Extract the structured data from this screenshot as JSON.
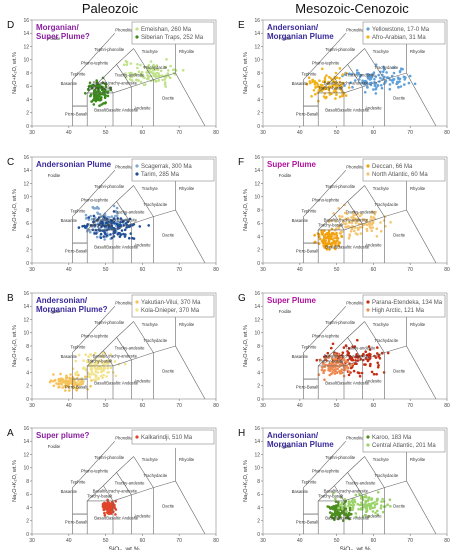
{
  "columns": [
    "Paleozoic",
    "Mesozoic-Cenozoic"
  ],
  "axis": {
    "xlabel": "SiO₂, wt.%",
    "ylabel": "Na₂O+K₂O, wt.%",
    "xlim": [
      30,
      80
    ],
    "ylim": [
      0,
      16
    ],
    "xticks": [
      30,
      40,
      50,
      60,
      70,
      80
    ],
    "yticks": [
      0,
      2,
      4,
      6,
      8,
      10,
      12,
      14,
      16
    ]
  },
  "tas_fields": {
    "foidite": "Foidite",
    "phonolite": "Phonolite",
    "tephriphonolite": "Tephri-phonolite",
    "phonotephrite": "Phono-tephrite",
    "tephrite": "Tephrite",
    "basanite": "Basanite",
    "trachyte": "Trachyte",
    "trachydacite": "Trachydacite",
    "trachyandesite": "Trachy-andesite",
    "basaltic_trachyandesite": "Basaltic trachy-andesite",
    "trachybasalt": "Trachy-basalt",
    "rhyolite": "Rhyolite",
    "dacite": "Dacite",
    "andesite": "Andesite",
    "basaltic_andesite": "Basaltic Andesite",
    "basalt": "Basalt",
    "picrobasalt": "Picro-Basalt"
  },
  "chart_data": [
    {
      "type": "scatter",
      "panel": "D",
      "title": "Morganian/ Super Plume?",
      "xlabel": "SiO₂, wt.%",
      "ylabel": "Na₂O+K₂O, wt.%",
      "xlim": [
        30,
        80
      ],
      "ylim": [
        0,
        16
      ],
      "legend": "top-right",
      "series": [
        {
          "name": "Emeishan, 260 Ma",
          "color": "#bfe28a",
          "cloud": {
            "x_center": 62,
            "y_center": 8,
            "x_spread": 10,
            "y_spread": 2.5
          }
        },
        {
          "name": "Siberian Traps, 252 Ma",
          "color": "#3a8a1c",
          "cloud": {
            "x_center": 48,
            "y_center": 5,
            "x_spread": 4,
            "y_spread": 2.5
          }
        }
      ]
    },
    {
      "type": "scatter",
      "panel": "C",
      "title": "Andersonian Plume",
      "xlabel": "SiO₂, wt.%",
      "ylabel": "Na₂O+K₂O, wt.%",
      "xlim": [
        30,
        80
      ],
      "ylim": [
        0,
        16
      ],
      "legend": "top-right",
      "series": [
        {
          "name": "Scagerrak, 300 Ma",
          "color": "#7fa6d0",
          "cloud": {
            "x_center": 50,
            "y_center": 6,
            "x_spread": 8,
            "y_spread": 3
          }
        },
        {
          "name": "Tarim, 285 Ma",
          "color": "#1f4e96",
          "cloud": {
            "x_center": 52,
            "y_center": 5.5,
            "x_spread": 12,
            "y_spread": 2.5
          }
        }
      ]
    },
    {
      "type": "scatter",
      "panel": "B",
      "title": "Andersonian/ Morganian Plume?",
      "xlabel": "SiO₂, wt.%",
      "ylabel": "Na₂O+K₂O, wt.%",
      "xlim": [
        30,
        80
      ],
      "ylim": [
        0,
        16
      ],
      "legend": "top-right",
      "series": [
        {
          "name": "Yakutian-Vilui, 370 Ma",
          "color": "#f6c25a",
          "cloud": {
            "x_center": 40,
            "y_center": 2.5,
            "x_spread": 7,
            "y_spread": 1.5
          }
        },
        {
          "name": "Kola-Dnieper, 370 Ma",
          "color": "#f2e38a",
          "cloud": {
            "x_center": 48,
            "y_center": 5,
            "x_spread": 8,
            "y_spread": 3
          }
        }
      ]
    },
    {
      "type": "scatter",
      "panel": "A",
      "title": "Super plume?",
      "xlabel": "SiO₂, wt.%",
      "ylabel": "Na₂O+K₂O, wt.%",
      "xlim": [
        30,
        80
      ],
      "ylim": [
        0,
        16
      ],
      "legend": "top-right",
      "series": [
        {
          "name": "Kalkarindji, 510 Ma",
          "color": "#e0442a",
          "cloud": {
            "x_center": 51,
            "y_center": 4,
            "x_spread": 2.5,
            "y_spread": 1.5
          }
        }
      ]
    },
    {
      "type": "scatter",
      "panel": "E",
      "title": "Andersonian/ Morganian Plume",
      "xlabel": "SiO₂, wt.%",
      "ylabel": "Na₂O+K₂O, wt.%",
      "xlim": [
        30,
        80
      ],
      "ylim": [
        0,
        16
      ],
      "legend": "top-right",
      "series": [
        {
          "name": "Yellowstone, 17-0 Ma",
          "color": "#5fa0db",
          "cloud": {
            "x_center": 62,
            "y_center": 7,
            "x_spread": 14,
            "y_spread": 2.5
          }
        },
        {
          "name": "Afro-Arabian, 31 Ma",
          "color": "#f2b21a",
          "cloud": {
            "x_center": 48,
            "y_center": 6,
            "x_spread": 7,
            "y_spread": 3
          }
        }
      ]
    },
    {
      "type": "scatter",
      "panel": "F",
      "title": "Super Plume",
      "xlabel": "SiO₂, wt.%",
      "ylabel": "Na₂O+K₂O, wt.%",
      "xlim": [
        30,
        80
      ],
      "ylim": [
        0,
        16
      ],
      "legend": "top-right",
      "series": [
        {
          "name": "Deccan, 66 Ma",
          "color": "#f2a20f",
          "cloud": {
            "x_center": 48,
            "y_center": 3.5,
            "x_spread": 5,
            "y_spread": 2
          }
        },
        {
          "name": "North Atlantic, 60 Ma",
          "color": "#f4c470",
          "cloud": {
            "x_center": 55,
            "y_center": 6,
            "x_spread": 11,
            "y_spread": 3
          }
        }
      ]
    },
    {
      "type": "scatter",
      "panel": "G",
      "title": "Super Plume",
      "xlabel": "SiO₂, wt.%",
      "ylabel": "Na₂O+K₂O, wt.%",
      "xlim": [
        30,
        80
      ],
      "ylim": [
        0,
        16
      ],
      "legend": "top-right",
      "series": [
        {
          "name": "Parana-Etendeka, 134 Ma",
          "color": "#c72b12",
          "cloud": {
            "x_center": 55,
            "y_center": 6,
            "x_spread": 12,
            "y_spread": 3
          }
        },
        {
          "name": "High Arctic, 121 Ma",
          "color": "#f08a52",
          "cloud": {
            "x_center": 50,
            "y_center": 5,
            "x_spread": 6,
            "y_spread": 2.5
          }
        }
      ]
    },
    {
      "type": "scatter",
      "panel": "H",
      "title": "Andersonian/ Morganian Plume",
      "xlabel": "SiO₂, wt.%",
      "ylabel": "Na₂O+K₂O, wt.%",
      "xlim": [
        30,
        80
      ],
      "ylim": [
        0,
        16
      ],
      "legend": "top-right",
      "series": [
        {
          "name": "Karoo, 183 Ma",
          "color": "#4d8e1f",
          "cloud": {
            "x_center": 51,
            "y_center": 3.5,
            "x_spread": 5,
            "y_spread": 1.8
          }
        },
        {
          "name": "Central Atlantic, 201 Ma",
          "color": "#9bd36a",
          "cloud": {
            "x_center": 57,
            "y_center": 4.5,
            "x_spread": 10,
            "y_spread": 2.5
          }
        }
      ]
    }
  ]
}
